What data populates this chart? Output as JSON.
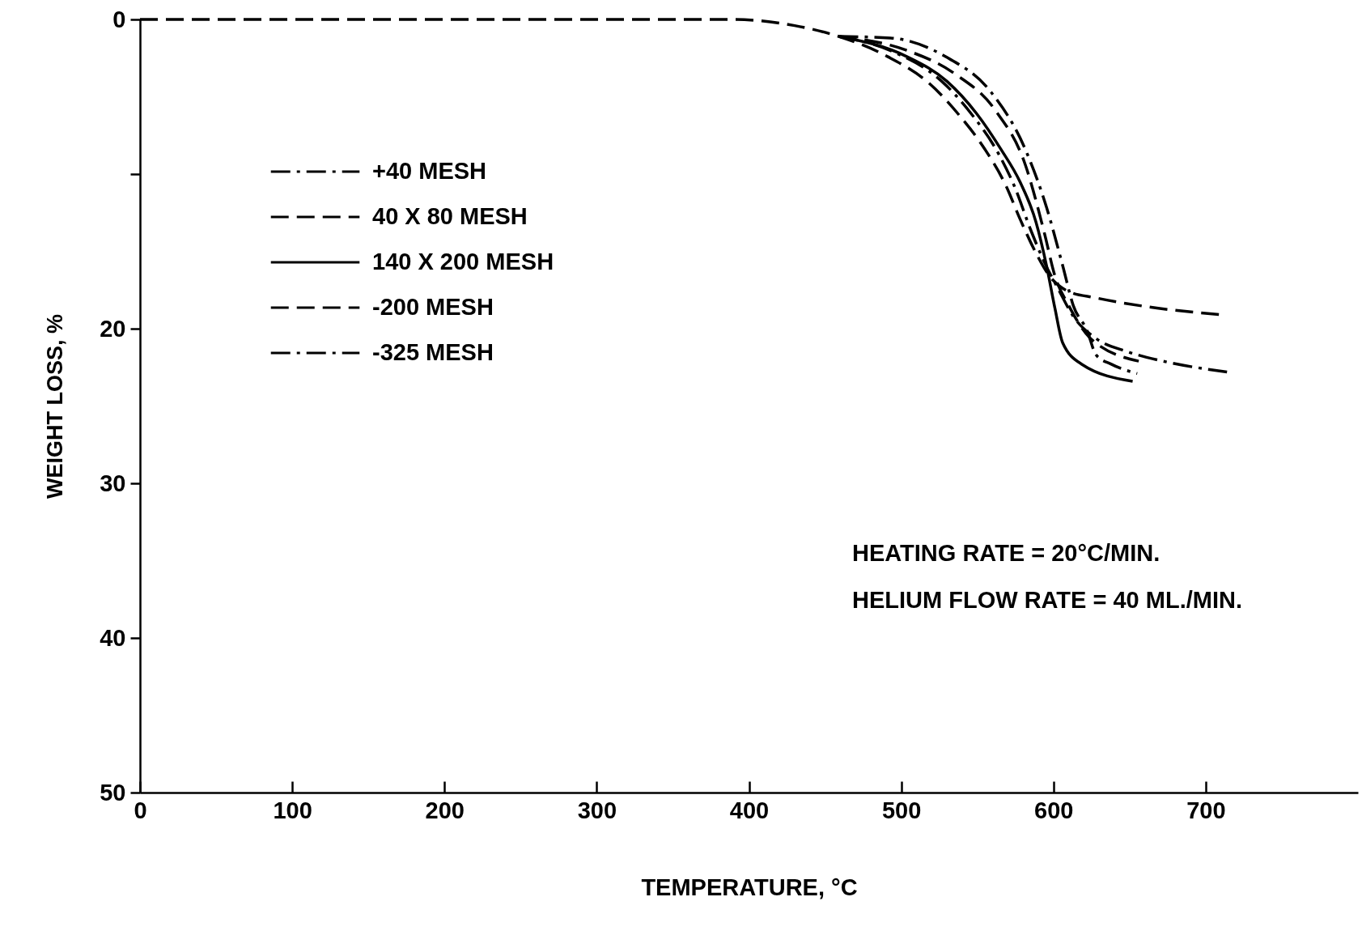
{
  "chart_data": {
    "type": "line",
    "xlabel": "TEMPERATURE, °C",
    "ylabel": "WEIGHT LOSS, %",
    "xlim": [
      0,
      800
    ],
    "xticks": [
      0,
      100,
      200,
      300,
      400,
      500,
      600,
      700
    ],
    "ylim": [
      50,
      0
    ],
    "yticks": [
      0,
      {
        "value": 10,
        "label": null
      },
      20,
      30,
      40,
      50
    ],
    "grid": false,
    "legend": "top left",
    "annotations": [
      "HEATING RATE = 20°C/MIN.",
      "HELIUM FLOW RATE = 40 ML./MIN."
    ],
    "series": [
      {
        "name": "+40 MESH",
        "color": "#000000",
        "line_style": "dashdot",
        "x": [
          459,
          493,
          529,
          559,
          581.5,
          595.6,
          606,
          613,
          622,
          628,
          638,
          655
        ],
        "values": [
          1.1,
          1.2,
          2.4,
          4.7,
          8.4,
          12.2,
          15.9,
          18.5,
          20.1,
          21.7,
          22.3,
          22.9
        ]
      },
      {
        "name": "40 X 80 MESH",
        "color": "#000000",
        "line_style": "dashed",
        "x": [
          459,
          503.6,
          535,
          562,
          581.5,
          594,
          601,
          610,
          624,
          656
        ],
        "values": [
          1.1,
          2.0,
          3.5,
          5.9,
          9.4,
          13.8,
          16.6,
          18.5,
          20.6,
          22.1
        ]
      },
      {
        "name": "140 X 200 MESH",
        "color": "#000000",
        "line_style": "solid",
        "x": [
          459,
          503.6,
          530,
          549.6,
          565.5,
          578,
          588.5,
          595.6,
          601,
          606,
          618.6,
          652
        ],
        "values": [
          1.1,
          2.4,
          4.0,
          6.1,
          8.4,
          10.5,
          13.1,
          16.0,
          18.7,
          20.9,
          22.3,
          23.4
        ]
      },
      {
        "name": "-200 MESH",
        "color": "#000000",
        "line_style": "dashed",
        "x": [
          0,
          390,
          430,
          459,
          491,
          518,
          539,
          555,
          569,
          578,
          589,
          596,
          610,
          627.5,
          663,
          711
        ],
        "values": [
          0,
          0,
          0.4,
          1.1,
          2.4,
          4.1,
          6.3,
          8.4,
          10.8,
          12.9,
          15.2,
          16.4,
          17.6,
          18.0,
          18.6,
          19.1
        ]
      },
      {
        "name": "-325 MESH",
        "color": "#000000",
        "line_style": "dashdot",
        "x": [
          459,
          495,
          526.6,
          546,
          564,
          574.4,
          585,
          594,
          603,
          613,
          627.5,
          649,
          672,
          714
        ],
        "values": [
          1.1,
          2.1,
          4.0,
          6.1,
          8.7,
          10.8,
          13.6,
          15.7,
          17.4,
          19.2,
          20.6,
          21.5,
          22.1,
          22.8
        ]
      }
    ]
  }
}
